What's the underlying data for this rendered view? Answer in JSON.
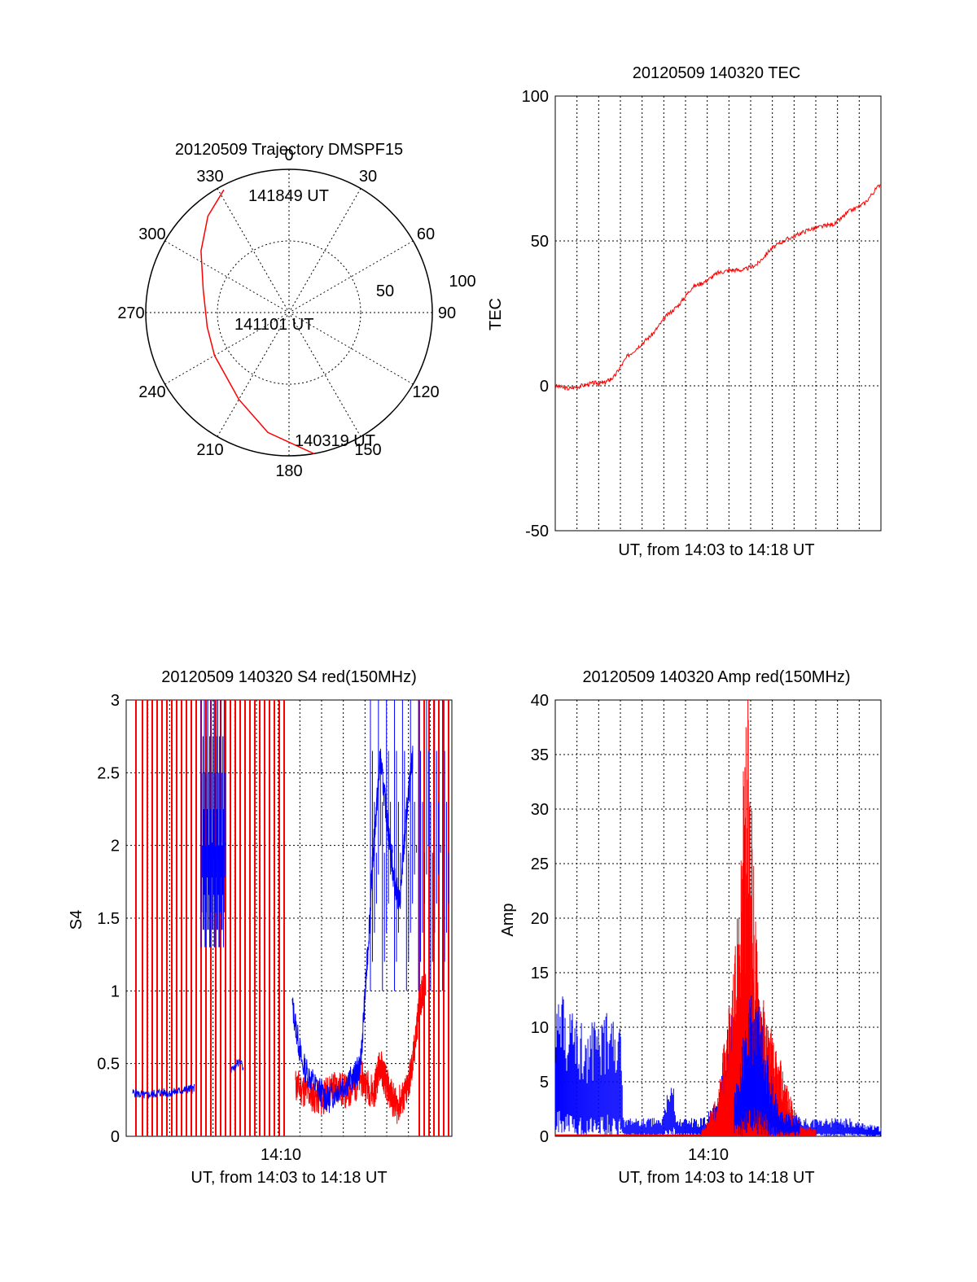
{
  "colors": {
    "red": "#ff0000",
    "blue": "#0000ff",
    "axis": "#000000",
    "grid": "#000000"
  },
  "chart_data": [
    {
      "id": "trajectory",
      "type": "polar",
      "title": "20120509 Trajectory DMSPF15",
      "azimuth_labels": [
        "0",
        "30",
        "60",
        "90",
        "120",
        "150",
        "180",
        "210",
        "240",
        "270",
        "300",
        "330"
      ],
      "radial_labels": [
        "50",
        "100"
      ],
      "annotations": [
        "141849 UT",
        "141101 UT",
        "140319 UT"
      ],
      "track": {
        "color": "red",
        "points": [
          {
            "az": 170,
            "r": 100
          },
          {
            "az": 190,
            "r": 85
          },
          {
            "az": 210,
            "r": 70
          },
          {
            "az": 240,
            "r": 60
          },
          {
            "az": 260,
            "r": 58
          },
          {
            "az": 285,
            "r": 62
          },
          {
            "az": 305,
            "r": 75
          },
          {
            "az": 320,
            "r": 88
          },
          {
            "az": 332,
            "r": 97
          }
        ]
      }
    },
    {
      "id": "tec",
      "type": "line",
      "title": "20120509 140320 TEC",
      "xlabel": "UT, from 14:03 to 14:18 UT",
      "ylabel": "TEC",
      "ylim": [
        -50,
        100
      ],
      "yticks": [
        "100",
        "50",
        "0",
        "-50"
      ],
      "grid": true,
      "series": [
        {
          "color": "red",
          "x": [
            0,
            0.04,
            0.08,
            0.12,
            0.15,
            0.18,
            0.22,
            0.26,
            0.3,
            0.34,
            0.38,
            0.42,
            0.46,
            0.5,
            0.54,
            0.58,
            0.62,
            0.66,
            0.7,
            0.74,
            0.78,
            0.82,
            0.86,
            0.9,
            0.95,
            1.0
          ],
          "y": [
            0,
            -1,
            0,
            1,
            1,
            3,
            10,
            14,
            18,
            24,
            28,
            34,
            36,
            39,
            40,
            40,
            42,
            47,
            50,
            52,
            54,
            55,
            56,
            60,
            63,
            70
          ]
        }
      ]
    },
    {
      "id": "s4",
      "type": "line",
      "title": "20120509 140320 S4 red(150MHz)",
      "xlabel": "UT, from 14:03 to 14:18 UT",
      "xtick_label": "14:10",
      "ylabel": "S4",
      "ylim": [
        0,
        3
      ],
      "yticks": [
        "3",
        "2.5",
        "2",
        "1.5",
        "1",
        "0.5",
        "0"
      ],
      "grid": true,
      "series": [
        {
          "color": "red",
          "spikes_x": [
            0.03,
            0.05,
            0.065,
            0.08,
            0.095,
            0.11,
            0.125,
            0.14,
            0.155,
            0.17,
            0.185,
            0.2,
            0.215,
            0.23,
            0.245,
            0.26,
            0.275,
            0.29,
            0.305,
            0.32,
            0.335,
            0.35,
            0.365,
            0.38,
            0.395,
            0.41,
            0.425,
            0.44,
            0.455,
            0.47,
            0.485
          ],
          "x": [
            0.52,
            0.56,
            0.6,
            0.64,
            0.68,
            0.72,
            0.76,
            0.78,
            0.8,
            0.83,
            0.86,
            0.88,
            0.9,
            0.92
          ],
          "y": [
            0.35,
            0.3,
            0.25,
            0.35,
            0.3,
            0.4,
            0.3,
            0.5,
            0.35,
            0.2,
            0.3,
            0.5,
            0.9,
            1.1
          ],
          "spikes_x2": [
            0.9,
            0.915,
            0.93,
            0.945,
            0.96,
            0.975,
            0.99
          ]
        },
        {
          "color": "blue",
          "x": [
            0.02,
            0.06,
            0.1,
            0.14,
            0.18,
            0.21
          ],
          "y": [
            0.3,
            0.28,
            0.3,
            0.3,
            0.32,
            0.33
          ],
          "x_seg2": [
            0.32,
            0.34,
            0.36
          ],
          "y_seg2": [
            0.45,
            0.5,
            0.48
          ],
          "x_seg3": [
            0.51,
            0.54,
            0.58,
            0.62,
            0.66,
            0.7,
            0.72,
            0.74,
            0.76,
            0.78,
            0.8,
            0.82,
            0.84,
            0.86,
            0.88
          ],
          "y_seg3": [
            0.9,
            0.5,
            0.35,
            0.25,
            0.35,
            0.4,
            0.5,
            1.2,
            2.0,
            2.6,
            2.2,
            1.8,
            1.6,
            2.2,
            2.6
          ]
        }
      ]
    },
    {
      "id": "amp",
      "type": "line",
      "title": "20120509 140320 Amp red(150MHz)",
      "xlabel": "UT, from 14:03 to 14:18 UT",
      "xtick_label": "14:10",
      "ylabel": "Amp",
      "ylim": [
        0,
        40
      ],
      "yticks": [
        "40",
        "35",
        "30",
        "25",
        "20",
        "15",
        "10",
        "5",
        "0"
      ],
      "grid": true,
      "series": [
        {
          "color": "blue",
          "x": [
            0.0,
            0.05,
            0.1,
            0.15,
            0.2,
            0.21,
            0.3,
            0.33,
            0.36,
            0.37,
            0.45,
            0.5,
            0.52,
            0.55,
            0.58,
            0.6,
            0.62,
            0.64,
            0.66,
            0.7,
            0.75,
            0.8,
            0.9,
            1.0
          ],
          "y": [
            8,
            7,
            6,
            7,
            6,
            1,
            1,
            1,
            4,
            1,
            1,
            2,
            5,
            8,
            10,
            9,
            7,
            5,
            3,
            1.5,
            1,
            1,
            1,
            0.5
          ]
        },
        {
          "color": "red",
          "x": [
            0.0,
            0.2,
            0.45,
            0.5,
            0.52,
            0.55,
            0.57,
            0.59,
            0.6,
            0.62,
            0.64,
            0.66,
            0.68,
            0.7,
            0.72,
            0.75,
            0.8
          ],
          "y": [
            0.1,
            0.1,
            0.5,
            3,
            7,
            12,
            22,
            33,
            25,
            14,
            10,
            8,
            6,
            5,
            3,
            1,
            0.5
          ]
        }
      ]
    }
  ]
}
